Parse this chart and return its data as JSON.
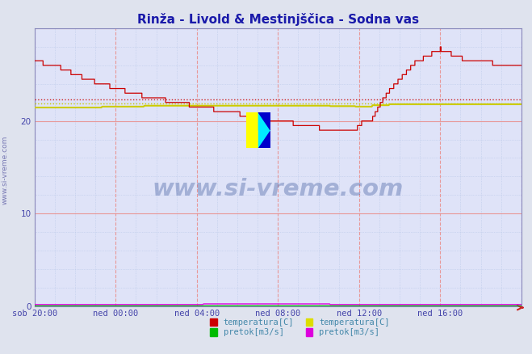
{
  "title": "Rinža - Livold & Mestinjščica - Sodna vas",
  "title_color": "#1a1aaa",
  "bg_color": "#dfe3ee",
  "plot_bg_color": "#dfe3f8",
  "watermark": "www.si-vreme.com",
  "watermark_color": "#1a3a8a",
  "watermark_alpha": 0.3,
  "sidebar_text": "www.si-vreme.com",
  "sidebar_color": "#6666aa",
  "xticklabels": [
    "sob 20:00",
    "ned 00:00",
    "ned 04:00",
    "ned 08:00",
    "ned 12:00",
    "ned 16:00"
  ],
  "xtick_positions": [
    0,
    96,
    192,
    288,
    384,
    480
  ],
  "xlim": [
    0,
    576
  ],
  "ylim": [
    0,
    30
  ],
  "yticks": [
    0,
    10,
    20
  ],
  "vgrid_major": [
    0,
    96,
    192,
    288,
    384,
    480,
    576
  ],
  "vgrid_minor_step": 24,
  "hgrid_major": [
    0,
    10,
    20,
    30
  ],
  "hgrid_minor_step": 2,
  "red_hline": 22.3,
  "yellow_hline": 21.85,
  "legend_items": [
    {
      "label": "temperatura[C]",
      "color": "#cc0000",
      "group": 1
    },
    {
      "label": "pretok[m3/s]",
      "color": "#00bb00",
      "group": 1
    },
    {
      "label": "temperatura[C]",
      "color": "#dddd00",
      "group": 2
    },
    {
      "label": "pretok[m3/s]",
      "color": "#dd00dd",
      "group": 2
    }
  ]
}
